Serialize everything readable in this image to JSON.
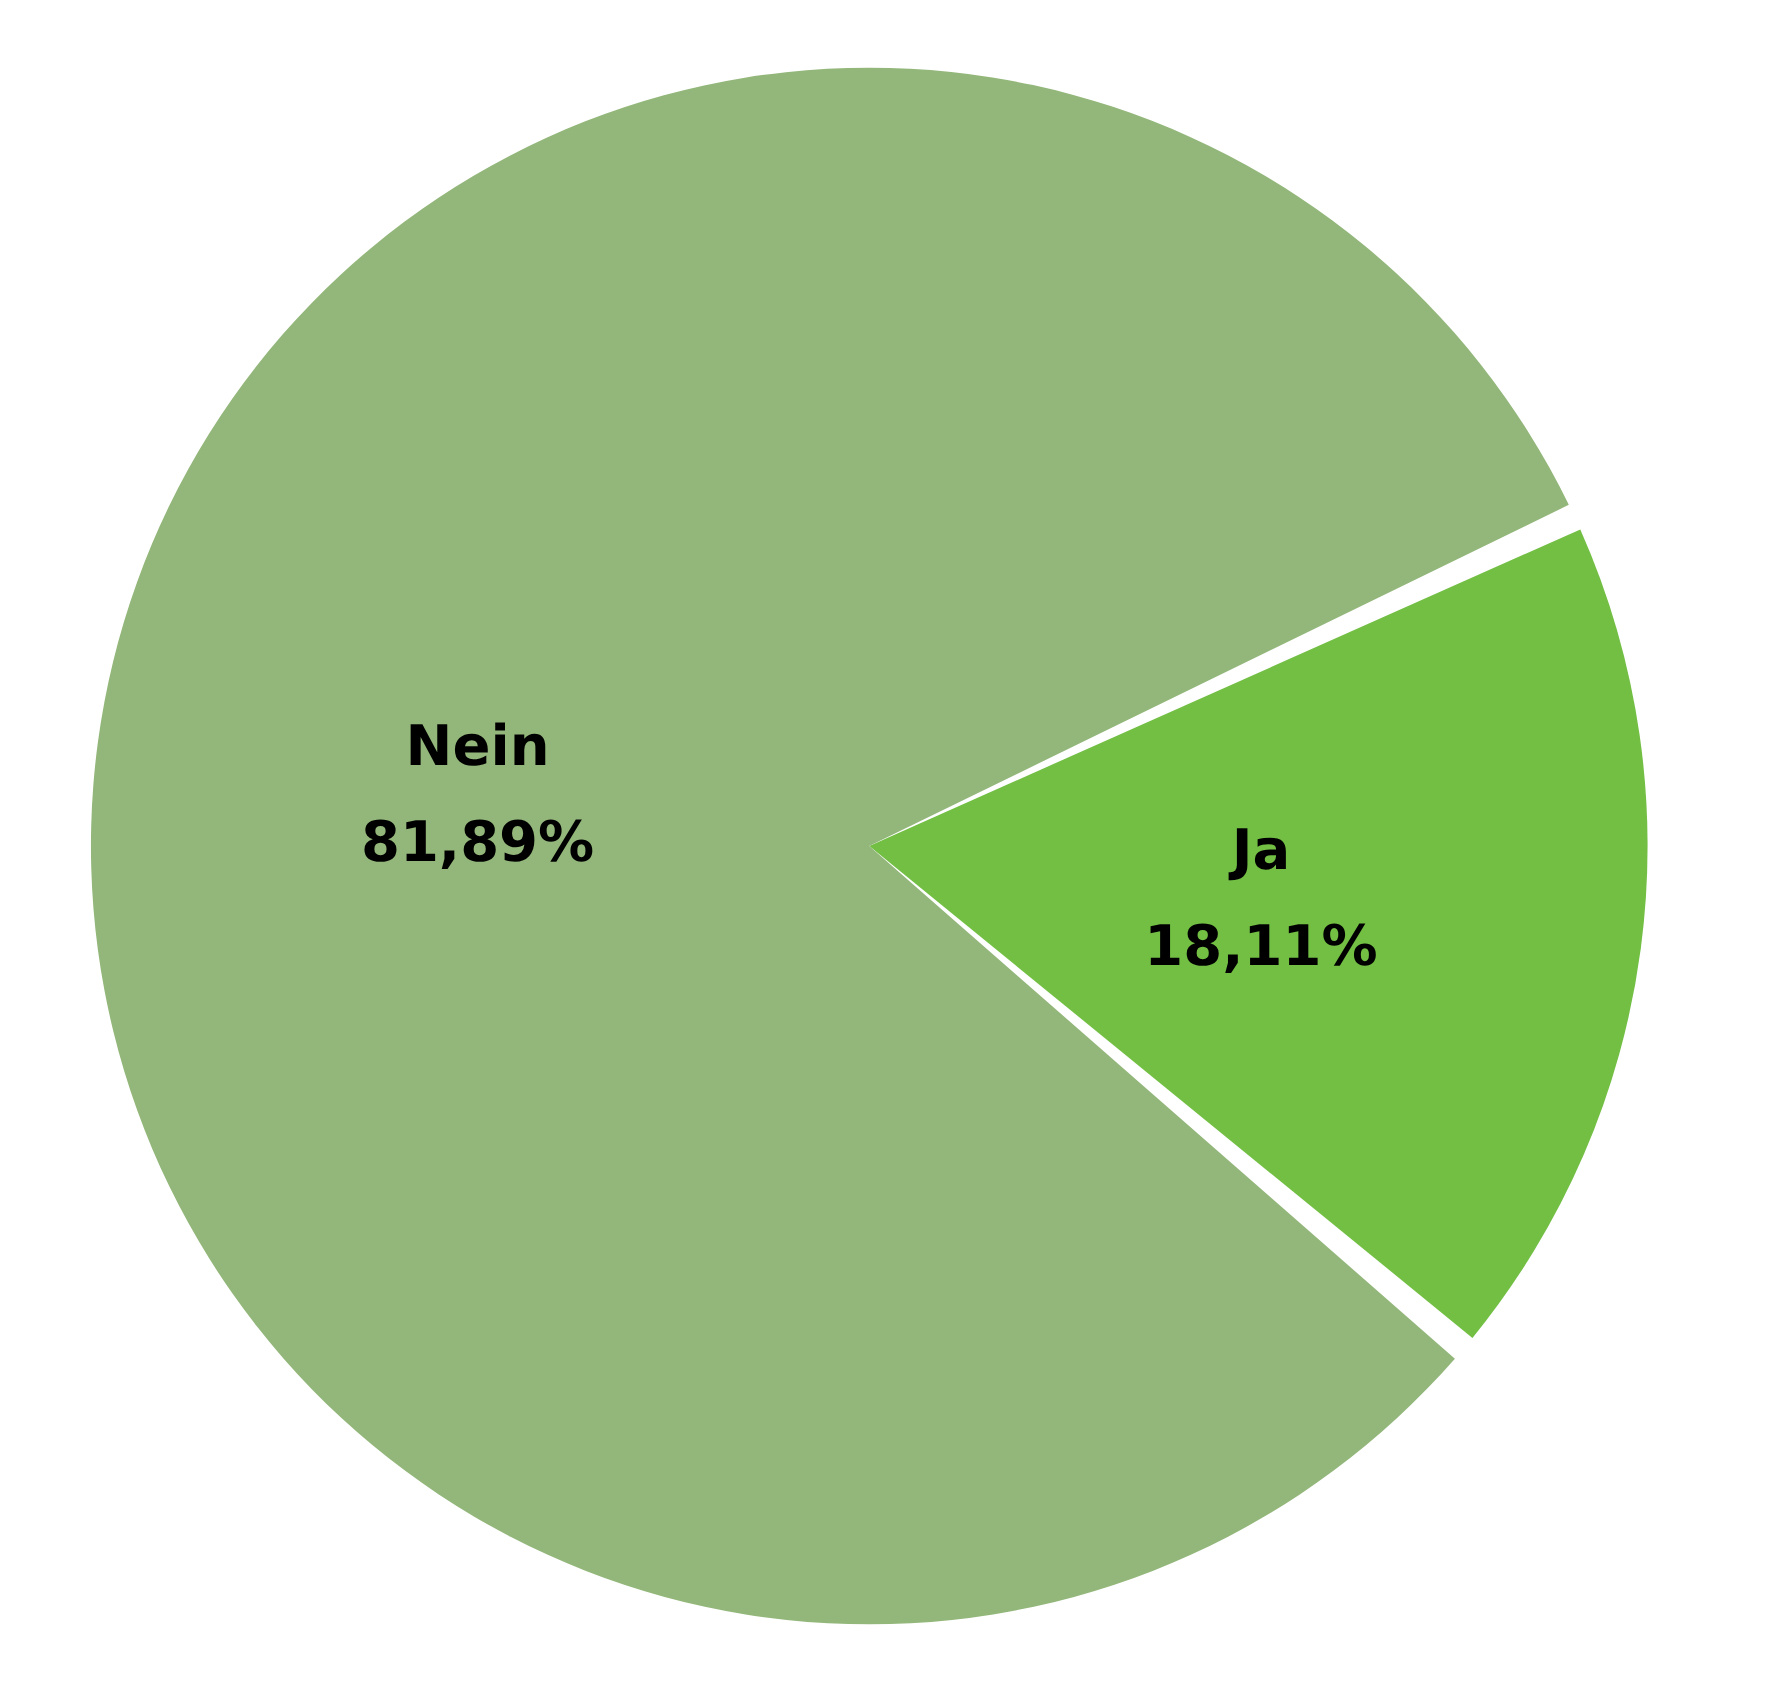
{
  "chart_data": {
    "type": "pie",
    "categories": [
      "Ja",
      "Nein"
    ],
    "values": [
      18.11,
      81.89
    ],
    "colors": [
      "#72bf44",
      "#93b77a"
    ],
    "value_labels": [
      "18,11%",
      "81,89%"
    ]
  }
}
